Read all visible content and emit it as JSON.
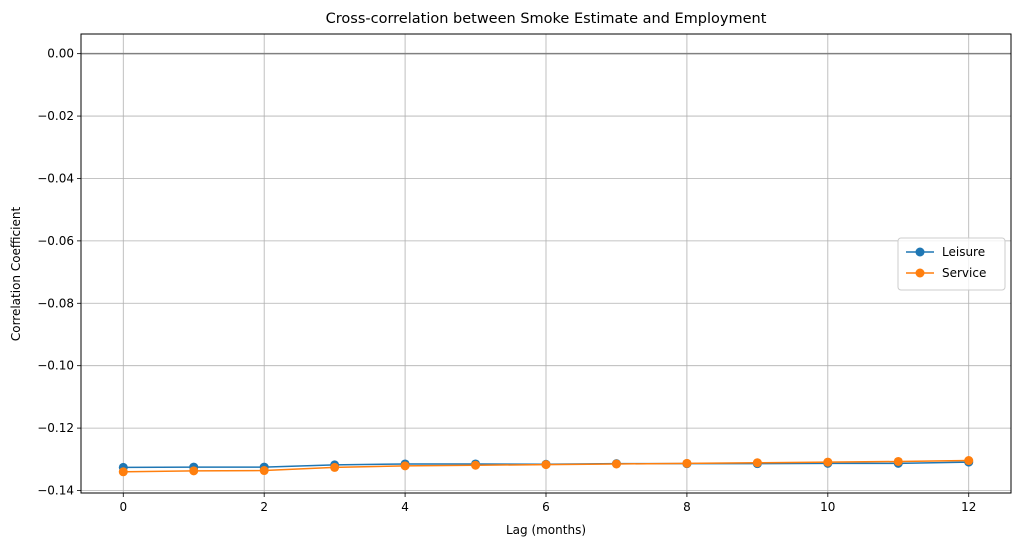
{
  "chart_data": {
    "type": "line",
    "title": "Cross-correlation between Smoke Estimate and Employment",
    "xlabel": "Lag (months)",
    "ylabel": "Correlation Coefficient",
    "xlim": [
      -0.6,
      12.6
    ],
    "ylim": [
      -0.1408,
      0.0063
    ],
    "xticks": [
      0,
      2,
      4,
      6,
      8,
      10,
      12
    ],
    "xtick_labels": [
      "0",
      "2",
      "4",
      "6",
      "8",
      "10",
      "12"
    ],
    "yticks": [
      0.0,
      -0.02,
      -0.04,
      -0.06,
      -0.08,
      -0.1,
      -0.12,
      -0.14
    ],
    "ytick_labels": [
      "0.00",
      "−0.02",
      "−0.04",
      "−0.06",
      "−0.08",
      "−0.10",
      "−0.12",
      "−0.14"
    ],
    "grid": true,
    "legend_position": "center-right",
    "reference_line": {
      "y": 0,
      "color": "#808080"
    },
    "x": [
      0,
      1,
      2,
      3,
      4,
      5,
      6,
      7,
      8,
      9,
      10,
      11,
      12
    ],
    "series": [
      {
        "name": "Leisure",
        "color": "#1f77b4",
        "marker": "circle",
        "values": [
          -0.1326,
          -0.1325,
          -0.1325,
          -0.1318,
          -0.1315,
          -0.1315,
          -0.1316,
          -0.1314,
          -0.1314,
          -0.1314,
          -0.1313,
          -0.1313,
          -0.1309
        ]
      },
      {
        "name": "Service",
        "color": "#ff7f0e",
        "marker": "circle",
        "values": [
          -0.134,
          -0.1337,
          -0.1336,
          -0.1326,
          -0.1321,
          -0.1319,
          -0.1317,
          -0.1315,
          -0.1313,
          -0.1311,
          -0.1309,
          -0.1307,
          -0.1304
        ]
      }
    ]
  }
}
